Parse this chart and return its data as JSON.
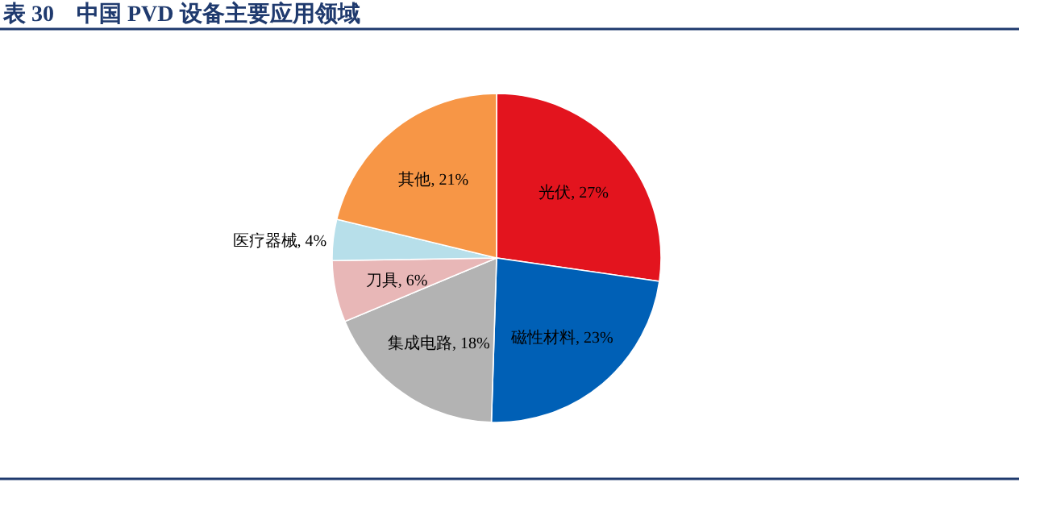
{
  "chart_data": {
    "type": "pie",
    "title": "表 30　中国 PVD 设备主要应用领域",
    "categories": [
      "光伏",
      "磁性材料",
      "集成电路",
      "刀具",
      "医疗器械",
      "其他"
    ],
    "values": [
      27,
      23,
      18,
      6,
      4,
      21
    ],
    "colors": [
      "#e3141e",
      "#0060b6",
      "#b3b3b3",
      "#e8b7b7",
      "#b7dfea",
      "#f79646"
    ],
    "value_labels": [
      "27%",
      "23%",
      "18%",
      "6%",
      "4%",
      "21%"
    ]
  }
}
